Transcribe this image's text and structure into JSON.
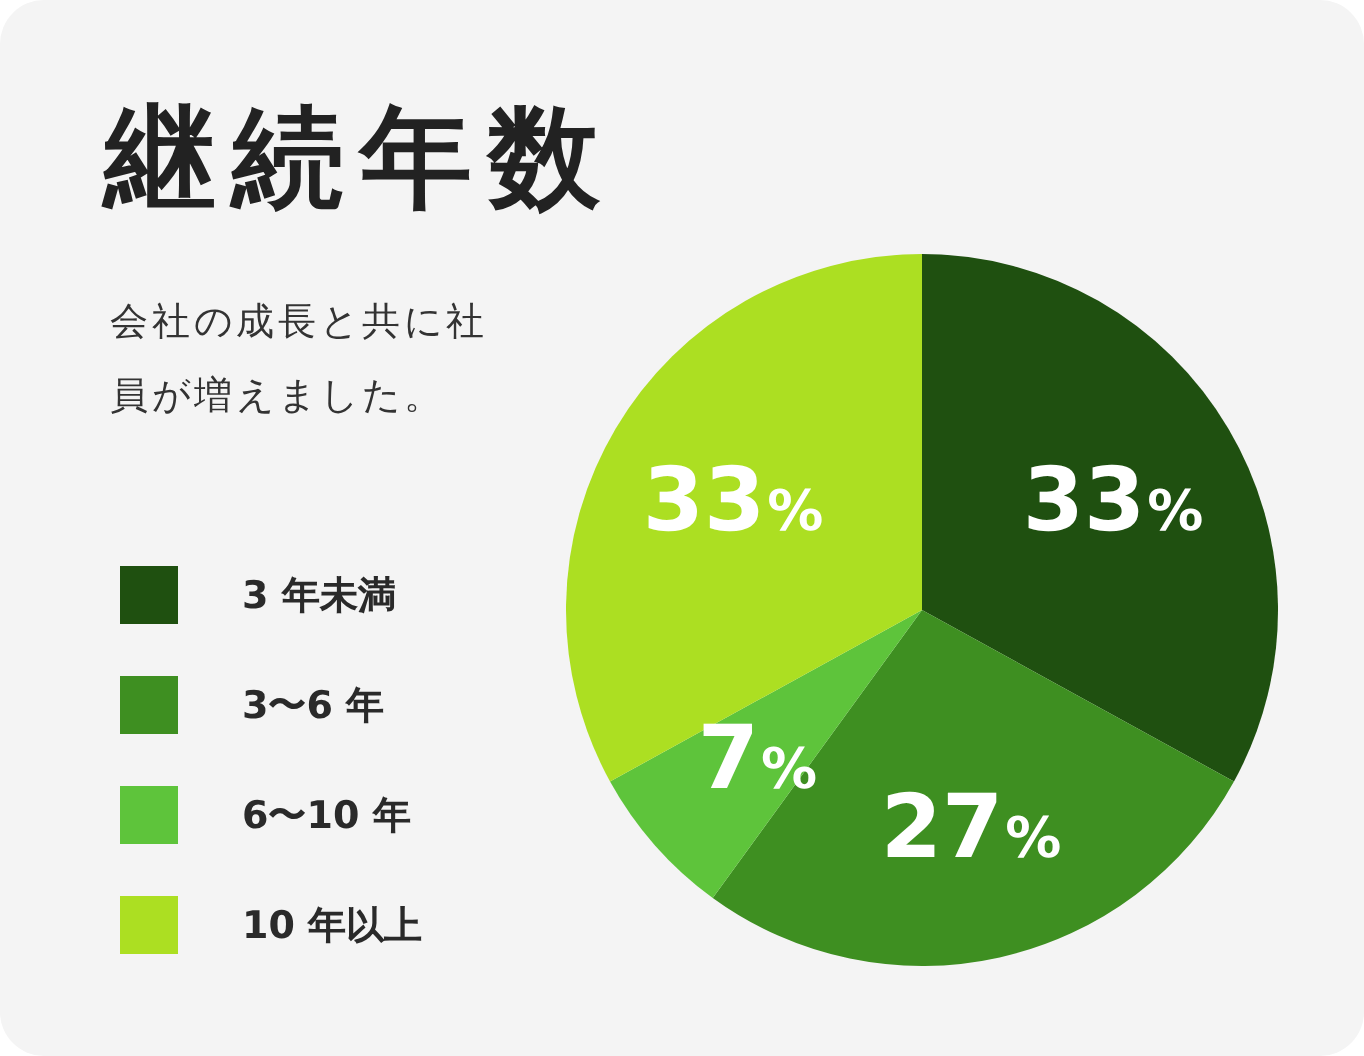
{
  "chart_data": {
    "type": "pie",
    "title": "継続年数",
    "subtitle": "会社の成長と共に社員が増えました。",
    "categories": [
      "3 年未満",
      "3〜6 年",
      "6〜10 年",
      "10 年以上"
    ],
    "values": [
      33,
      27,
      7,
      33
    ],
    "colors": [
      "#1f5010",
      "#3e8f21",
      "#5ec43b",
      "#acdf22"
    ],
    "value_labels": [
      "33%",
      "27%",
      "7%",
      "33%"
    ],
    "legend": "left"
  }
}
